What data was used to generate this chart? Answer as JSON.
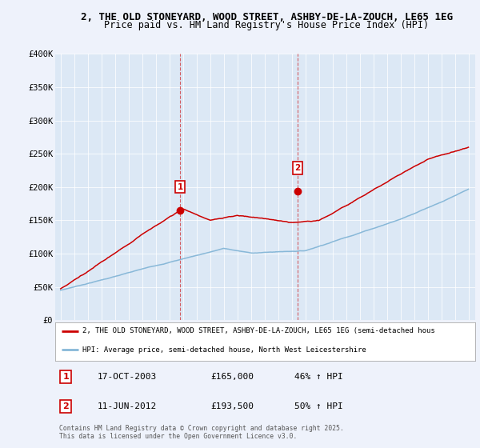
{
  "title_line1": "2, THE OLD STONEYARD, WOOD STREET, ASHBY-DE-LA-ZOUCH, LE65 1EG",
  "title_line2": "Price paid vs. HM Land Registry's House Price Index (HPI)",
  "background_color": "#eef2fb",
  "plot_bg_color": "#dce8f5",
  "red_color": "#cc0000",
  "blue_color": "#88b8d8",
  "vline_color": "#cc0000",
  "ylim": [
    0,
    400000
  ],
  "yticks": [
    0,
    50000,
    100000,
    150000,
    200000,
    250000,
    300000,
    350000,
    400000
  ],
  "ytick_labels": [
    "£0",
    "£50K",
    "£100K",
    "£150K",
    "£200K",
    "£250K",
    "£300K",
    "£350K",
    "£400K"
  ],
  "xlim_start": 1994.6,
  "xlim_end": 2025.5,
  "sale1_x": 2003.79,
  "sale1_y": 165000,
  "sale2_x": 2012.44,
  "sale2_y": 193500,
  "legend_line1": "2, THE OLD STONEYARD, WOOD STREET, ASHBY-DE-LA-ZOUCH, LE65 1EG (semi-detached hous",
  "legend_line2": "HPI: Average price, semi-detached house, North West Leicestershire",
  "table_row1": [
    "1",
    "17-OCT-2003",
    "£165,000",
    "46% ↑ HPI"
  ],
  "table_row2": [
    "2",
    "11-JUN-2012",
    "£193,500",
    "50% ↑ HPI"
  ],
  "footer": "Contains HM Land Registry data © Crown copyright and database right 2025.\nThis data is licensed under the Open Government Licence v3.0.",
  "title_fontsize": 9,
  "subtitle_fontsize": 8.5
}
